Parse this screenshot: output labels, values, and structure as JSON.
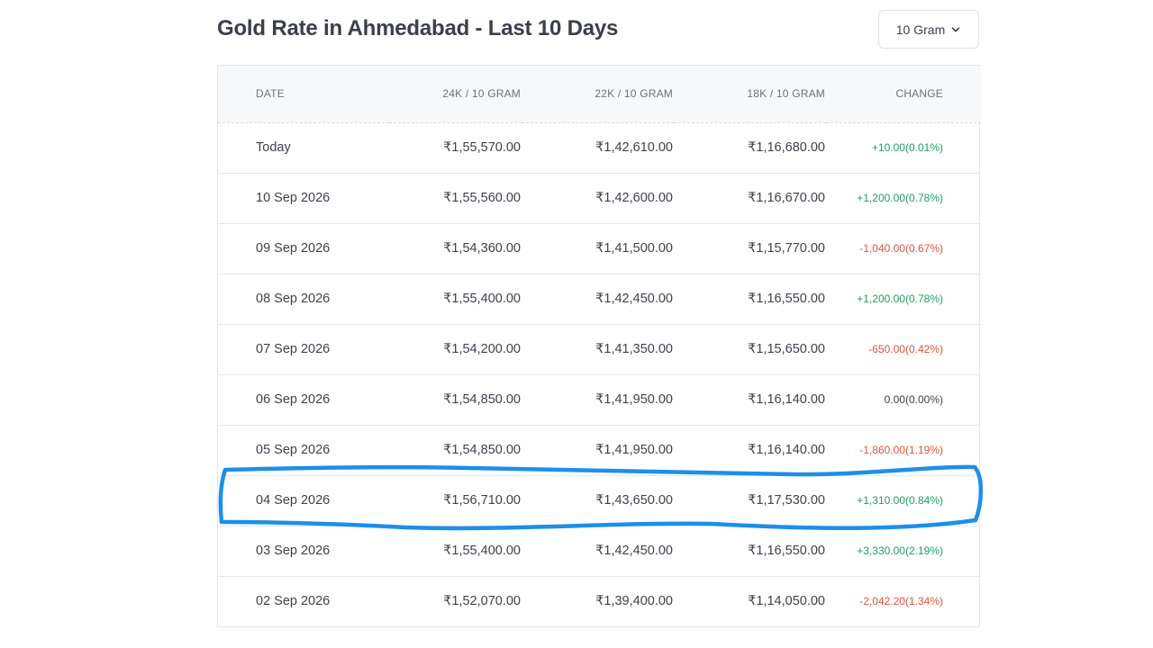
{
  "header": {
    "title": "Gold Rate in Ahmedabad - Last 10 Days",
    "unit_selector": "10 Gram"
  },
  "table": {
    "columns": {
      "date": "DATE",
      "k24": "24K / 10 GRAM",
      "k22": "22K / 10 GRAM",
      "k18": "18K / 10 GRAM",
      "change": "CHANGE"
    },
    "rows": [
      {
        "date": "Today",
        "k24": "₹1,55,570.00",
        "k22": "₹1,42,610.00",
        "k18": "₹1,16,680.00",
        "change": "+10.00(0.01%)",
        "trend": "pos"
      },
      {
        "date": "10 Sep 2026",
        "k24": "₹1,55,560.00",
        "k22": "₹1,42,600.00",
        "k18": "₹1,16,670.00",
        "change": "+1,200.00(0.78%)",
        "trend": "pos"
      },
      {
        "date": "09 Sep 2026",
        "k24": "₹1,54,360.00",
        "k22": "₹1,41,500.00",
        "k18": "₹1,15,770.00",
        "change": "-1,040.00(0.67%)",
        "trend": "neg"
      },
      {
        "date": "08 Sep 2026",
        "k24": "₹1,55,400.00",
        "k22": "₹1,42,450.00",
        "k18": "₹1,16,550.00",
        "change": "+1,200.00(0.78%)",
        "trend": "pos"
      },
      {
        "date": "07 Sep 2026",
        "k24": "₹1,54,200.00",
        "k22": "₹1,41,350.00",
        "k18": "₹1,15,650.00",
        "change": "-650.00(0.42%)",
        "trend": "neg"
      },
      {
        "date": "06 Sep 2026",
        "k24": "₹1,54,850.00",
        "k22": "₹1,41,950.00",
        "k18": "₹1,16,140.00",
        "change": "0.00(0.00%)",
        "trend": "neu"
      },
      {
        "date": "05 Sep 2026",
        "k24": "₹1,54,850.00",
        "k22": "₹1,41,950.00",
        "k18": "₹1,16,140.00",
        "change": "-1,860.00(1.19%)",
        "trend": "neg"
      },
      {
        "date": "04 Sep 2026",
        "k24": "₹1,56,710.00",
        "k22": "₹1,43,650.00",
        "k18": "₹1,17,530.00",
        "change": "+1,310.00(0.84%)",
        "trend": "pos"
      },
      {
        "date": "03 Sep 2026",
        "k24": "₹1,55,400.00",
        "k22": "₹1,42,450.00",
        "k18": "₹1,16,550.00",
        "change": "+3,330.00(2.19%)",
        "trend": "pos"
      },
      {
        "date": "02 Sep 2026",
        "k24": "₹1,52,070.00",
        "k22": "₹1,39,400.00",
        "k18": "₹1,14,050.00",
        "change": "-2,042.20(1.34%)",
        "trend": "neg"
      }
    ]
  },
  "colors": {
    "positive": "#1e9e63",
    "negative": "#e0543a",
    "highlight_stroke": "#1c8fe8"
  },
  "icons": {
    "unit_selector": "chevron-down-icon"
  }
}
